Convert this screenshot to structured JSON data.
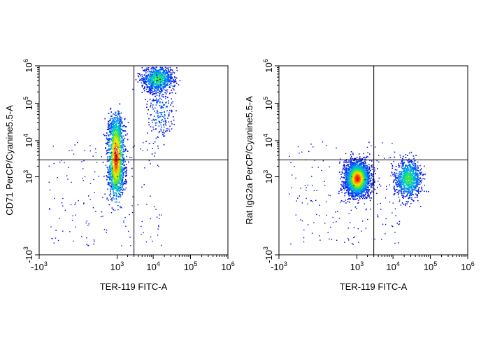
{
  "chart_data": [
    {
      "type": "scatter",
      "title": "",
      "xlabel": "TER-119 FITC-A",
      "ylabel": "CD71 PerCP/Cyanine5.5-A",
      "xscale": "biexponential",
      "yscale": "biexponential",
      "xlim": [
        -1000,
        1000000
      ],
      "ylim": [
        -1000,
        1000000
      ],
      "x_ticks": [
        {
          "value": -1000,
          "base": "-10",
          "exp": "3"
        },
        {
          "value": 1000,
          "base": "10",
          "exp": "3"
        },
        {
          "value": 10000,
          "base": "10",
          "exp": "4"
        },
        {
          "value": 100000,
          "base": "10",
          "exp": "5"
        },
        {
          "value": 1000000,
          "base": "10",
          "exp": "6"
        }
      ],
      "y_ticks": [
        {
          "value": -1000,
          "base": "-10",
          "exp": "3"
        },
        {
          "value": 1000,
          "base": "10",
          "exp": "3"
        },
        {
          "value": 10000,
          "base": "10",
          "exp": "4"
        },
        {
          "value": 100000,
          "base": "10",
          "exp": "5"
        },
        {
          "value": 1000000,
          "base": "10",
          "exp": "6"
        }
      ],
      "quadrant_gate": {
        "x": 3000,
        "y": 3000
      },
      "colormap": "density (blue to green to yellow to red)",
      "populations": [
        {
          "x_center": 900,
          "y_center": 3500,
          "density": "high",
          "shape": "vertical streak"
        },
        {
          "x_center": 13000,
          "y_center": 450000,
          "density": "medium"
        },
        {
          "x_center": 15000,
          "y_center": 60000,
          "density": "low"
        }
      ]
    },
    {
      "type": "scatter",
      "title": "",
      "xlabel": "TER-119 FITC-A",
      "ylabel": "Rat IgG2a PerCP/Cyanine5.5-A",
      "xscale": "biexponential",
      "yscale": "biexponential",
      "xlim": [
        -1000,
        1000000
      ],
      "ylim": [
        -1000,
        1000000
      ],
      "x_ticks": [
        {
          "value": -1000,
          "base": "-10",
          "exp": "3"
        },
        {
          "value": 1000,
          "base": "10",
          "exp": "3"
        },
        {
          "value": 10000,
          "base": "10",
          "exp": "4"
        },
        {
          "value": 100000,
          "base": "10",
          "exp": "5"
        },
        {
          "value": 1000000,
          "base": "10",
          "exp": "6"
        }
      ],
      "y_ticks": [
        {
          "value": -1000,
          "base": "-10",
          "exp": "3"
        },
        {
          "value": 1000,
          "base": "10",
          "exp": "3"
        },
        {
          "value": 10000,
          "base": "10",
          "exp": "4"
        },
        {
          "value": 100000,
          "base": "10",
          "exp": "5"
        },
        {
          "value": 1000000,
          "base": "10",
          "exp": "6"
        }
      ],
      "quadrant_gate": {
        "x": 3000,
        "y": 3000
      },
      "colormap": "density (blue to green to yellow to red)",
      "populations": [
        {
          "x_center": 1000,
          "y_center": 900,
          "density": "high",
          "shape": "round cluster"
        },
        {
          "x_center": 25000,
          "y_center": 900,
          "density": "medium"
        }
      ]
    }
  ]
}
